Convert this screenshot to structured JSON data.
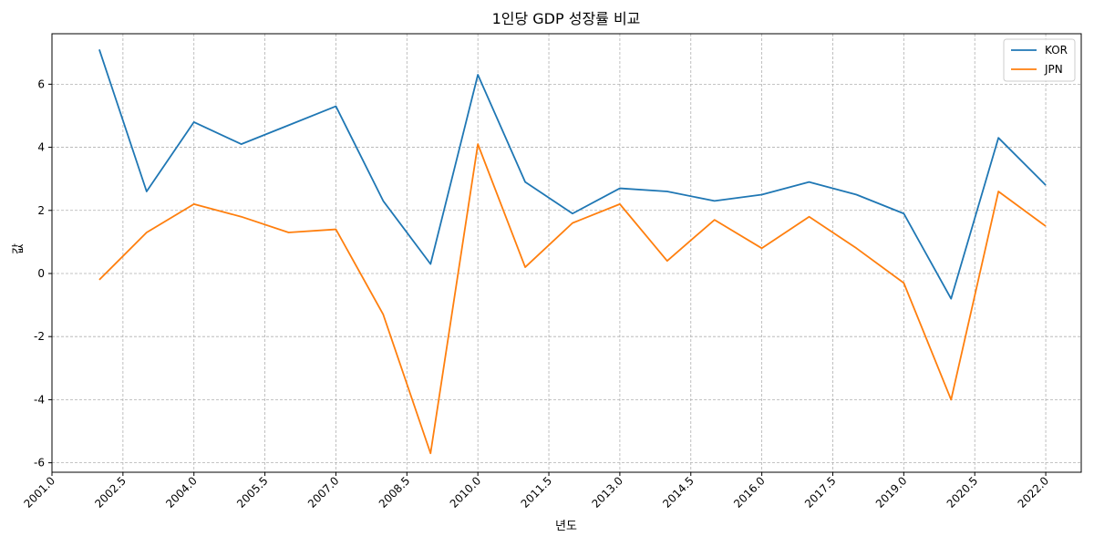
{
  "chart_data": {
    "type": "line",
    "title": "1인당 GDP 성장률 비교",
    "xlabel": "년도",
    "ylabel": "값",
    "xlim": [
      2001.0,
      2022.75
    ],
    "ylim": [
      -6.3,
      7.6
    ],
    "x_ticks": [
      2001.0,
      2002.5,
      2004.0,
      2005.5,
      2007.0,
      2008.5,
      2010.0,
      2011.5,
      2013.0,
      2014.5,
      2016.0,
      2017.5,
      2019.0,
      2020.5,
      2022.0
    ],
    "x_tick_labels": [
      "2001.0",
      "2002.5",
      "2004.0",
      "2005.5",
      "2007.0",
      "2008.5",
      "2010.0",
      "2011.5",
      "2013.0",
      "2014.5",
      "2016.0",
      "2017.5",
      "2019.0",
      "2020.5",
      "2022.0"
    ],
    "y_ticks": [
      -6,
      -4,
      -2,
      0,
      2,
      4,
      6
    ],
    "y_tick_labels": [
      "-6",
      "-4",
      "-2",
      "0",
      "2",
      "4",
      "6"
    ],
    "grid": true,
    "legend_position": "top-right",
    "x": [
      2002,
      2003,
      2004,
      2005,
      2006,
      2007,
      2008,
      2009,
      2010,
      2011,
      2012,
      2013,
      2014,
      2015,
      2016,
      2017,
      2018,
      2019,
      2020,
      2021,
      2022
    ],
    "series": [
      {
        "name": "KOR",
        "color": "#1f77b4",
        "values": [
          7.1,
          2.6,
          4.8,
          4.1,
          4.7,
          5.3,
          2.3,
          0.3,
          6.3,
          2.9,
          1.9,
          2.7,
          2.6,
          2.3,
          2.5,
          2.9,
          2.5,
          1.9,
          -0.8,
          4.3,
          2.8
        ]
      },
      {
        "name": "JPN",
        "color": "#ff7f0e",
        "values": [
          -0.2,
          1.3,
          2.2,
          1.8,
          1.3,
          1.4,
          -1.3,
          -5.7,
          4.1,
          0.2,
          1.6,
          2.2,
          0.4,
          1.7,
          0.8,
          1.8,
          0.8,
          -0.3,
          -4.0,
          2.6,
          1.5
        ]
      }
    ]
  }
}
